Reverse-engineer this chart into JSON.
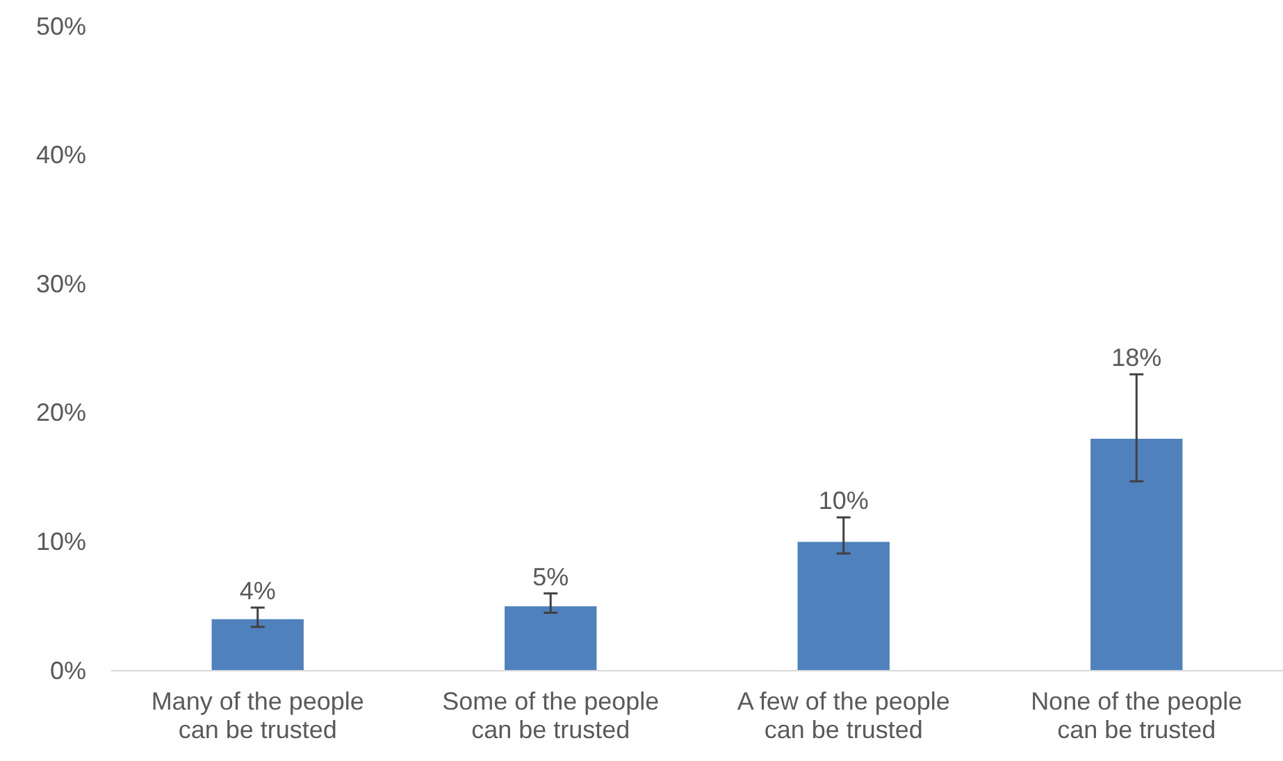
{
  "chart_data": {
    "type": "bar",
    "categories": [
      "Many of the people can be trusted",
      "Some of the people can be trusted",
      "A few of the people can be trusted",
      "None of the people can be trusted"
    ],
    "values": [
      4,
      5,
      10,
      18
    ],
    "errors": [
      [
        3.4,
        4.9
      ],
      [
        4.5,
        6.0
      ],
      [
        9.1,
        11.9
      ],
      [
        14.7,
        23.0
      ]
    ],
    "color": "#4f81bd",
    "value_labels": [
      "4%",
      "5%",
      "10%",
      "18%"
    ],
    "ylim": [
      0,
      50
    ],
    "yticks": [
      {
        "value": 0,
        "label": "0%"
      },
      {
        "value": 10,
        "label": "10%"
      },
      {
        "value": 20,
        "label": "20%"
      },
      {
        "value": 30,
        "label": "30%"
      },
      {
        "value": 40,
        "label": "40%"
      },
      {
        "value": 50,
        "label": "50%"
      }
    ],
    "grid": false
  }
}
